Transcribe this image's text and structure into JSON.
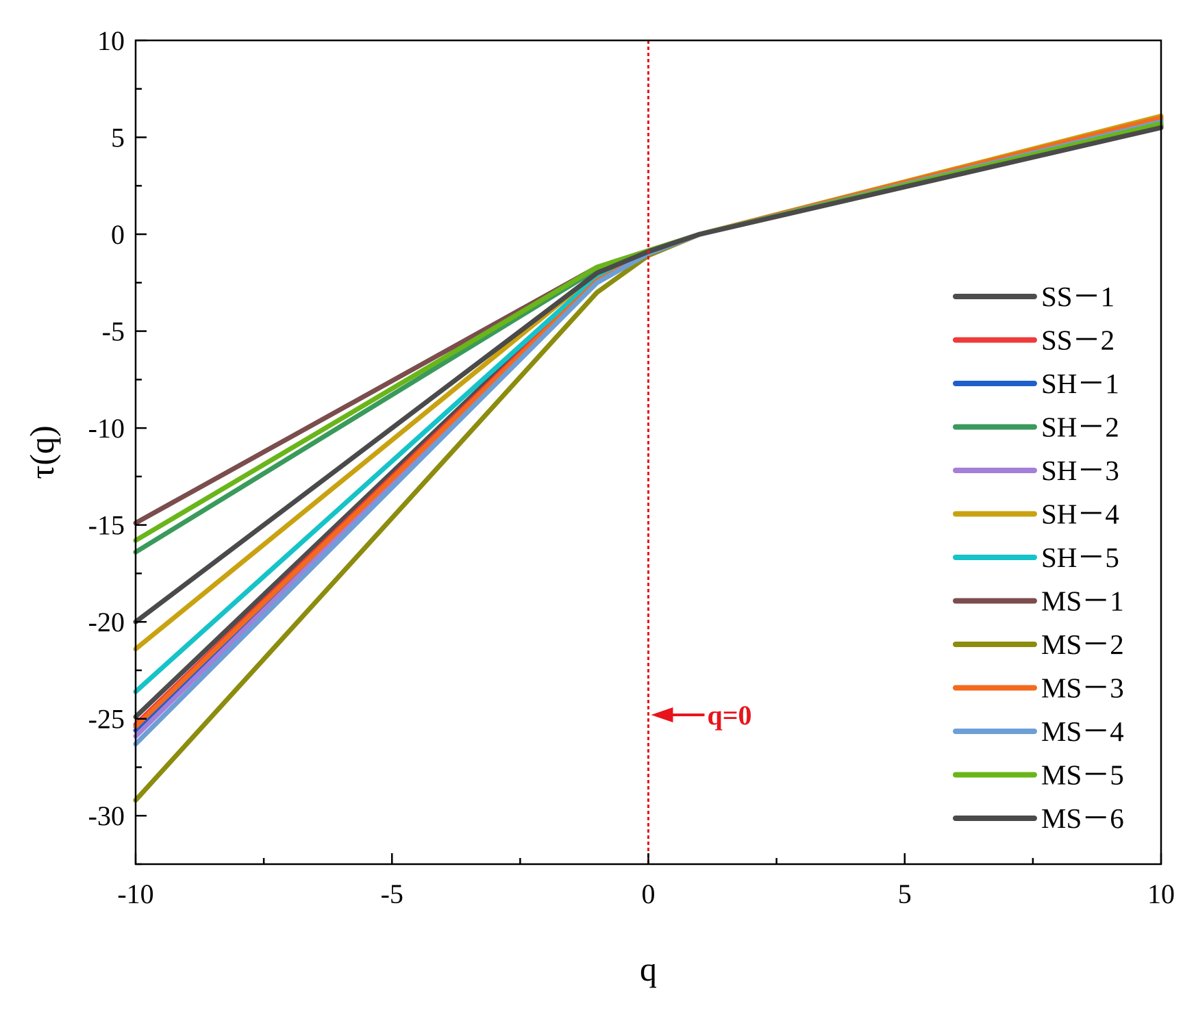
{
  "chart_data": {
    "type": "line",
    "title": "",
    "xlabel": "q",
    "ylabel": "τ(q)",
    "xlim": [
      -10,
      10
    ],
    "ylim": [
      -32.5,
      10
    ],
    "x_ticks": [
      -10,
      -5,
      0,
      5,
      10
    ],
    "y_ticks": [
      10,
      5,
      0,
      -5,
      -10,
      -15,
      -20,
      -25,
      -30
    ],
    "grid": false,
    "legend_position": "right",
    "x": [
      -10,
      -1,
      0,
      1,
      10
    ],
    "series": [
      {
        "name": "SS－1",
        "color": "#4d4d4d",
        "values": [
          -24.9,
          -2.2,
          -0.9,
          0,
          5.5
        ]
      },
      {
        "name": "SS－2",
        "color": "#ee3a3a",
        "values": [
          -25.3,
          -2.3,
          -0.95,
          0,
          5.6
        ]
      },
      {
        "name": "SH－1",
        "color": "#1f5fcc",
        "values": [
          -25.6,
          -2.4,
          -0.95,
          0,
          5.7
        ]
      },
      {
        "name": "SH－2",
        "color": "#3a9a5c",
        "values": [
          -16.4,
          -1.8,
          -0.9,
          0,
          5.7
        ]
      },
      {
        "name": "SH－3",
        "color": "#a47fd8",
        "values": [
          -25.9,
          -2.5,
          -1.0,
          0,
          5.8
        ]
      },
      {
        "name": "SH－4",
        "color": "#c9a211",
        "values": [
          -21.4,
          -2.0,
          -1.0,
          0,
          6.1
        ]
      },
      {
        "name": "SH－5",
        "color": "#16c3c8",
        "values": [
          -23.6,
          -2.2,
          -0.95,
          0,
          5.9
        ]
      },
      {
        "name": "MS－1",
        "color": "#7b4d4d",
        "values": [
          -14.9,
          -1.7,
          -0.85,
          0,
          5.6
        ]
      },
      {
        "name": "MS－2",
        "color": "#8c8c0e",
        "values": [
          -29.2,
          -3.0,
          -1.1,
          0,
          6.0
        ]
      },
      {
        "name": "MS－3",
        "color": "#f46a1d",
        "values": [
          -25.4,
          -2.4,
          -1.0,
          0,
          6.0
        ]
      },
      {
        "name": "MS－4",
        "color": "#6d9fd6",
        "values": [
          -26.3,
          -2.5,
          -1.0,
          0,
          5.8
        ]
      },
      {
        "name": "MS－5",
        "color": "#6ab51a",
        "values": [
          -15.8,
          -1.7,
          -0.85,
          0,
          5.7
        ]
      },
      {
        "name": "MS－6",
        "color": "#4a4a4a",
        "values": [
          -20.0,
          -2.0,
          -0.9,
          0,
          5.5
        ]
      }
    ],
    "annotations": [
      {
        "type": "vline",
        "x": 0,
        "color": "#e8141b",
        "style": "dotted"
      },
      {
        "type": "arrow",
        "label": "q=0",
        "x": 0,
        "y": -24.8,
        "color": "#e8141b"
      }
    ]
  }
}
